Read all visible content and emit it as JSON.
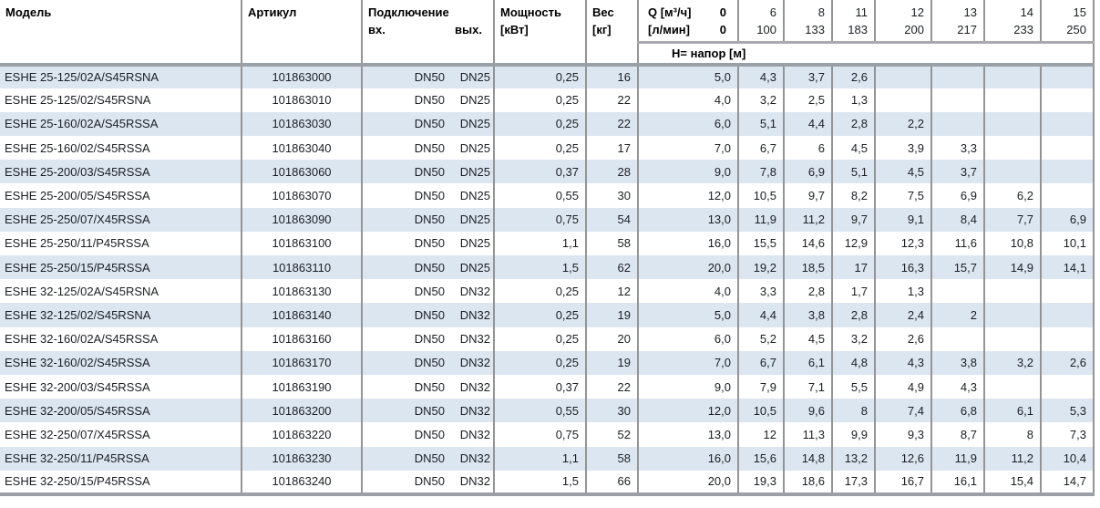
{
  "colors": {
    "stripe": "#dce6f1",
    "grid": "#949494",
    "rule_light": "#a7abb0",
    "rule_dark": "#9aa0a6"
  },
  "table": {
    "headers": {
      "model": "Модель",
      "article": "Артикул",
      "connection": "Подключение",
      "inlet": "вх.",
      "outlet": "вых.",
      "power_line1": "Мощность",
      "power_line2": "[кВт]",
      "weight_line1": "Вес",
      "weight_line2": "[кг]",
      "q_row1_label": "Q [м³/ч]",
      "q_row1_value": "0",
      "q_row2_label": "[л/мин]",
      "q_row2_value": "0",
      "head_label": "H= напор [м]",
      "flow_m3h": [
        "6",
        "8",
        "11",
        "12",
        "13",
        "14",
        "15"
      ],
      "flow_lmin": [
        "100",
        "133",
        "183",
        "200",
        "217",
        "233",
        "250"
      ]
    },
    "rows": [
      {
        "model": "ESHE 25-125/02A/S45RSNA",
        "article": "101863000",
        "inlet": "DN50",
        "outlet": "DN25",
        "power": "0,25",
        "weight": "16",
        "head": [
          "5,0",
          "4,3",
          "3,7",
          "2,6",
          "",
          "",
          "",
          ""
        ]
      },
      {
        "model": "ESHE 25-125/02/S45RSNA",
        "article": "101863010",
        "inlet": "DN50",
        "outlet": "DN25",
        "power": "0,25",
        "weight": "22",
        "head": [
          "4,0",
          "3,2",
          "2,5",
          "1,3",
          "",
          "",
          "",
          ""
        ]
      },
      {
        "model": "ESHE 25-160/02A/S45RSSA",
        "article": "101863030",
        "inlet": "DN50",
        "outlet": "DN25",
        "power": "0,25",
        "weight": "22",
        "head": [
          "6,0",
          "5,1",
          "4,4",
          "2,8",
          "2,2",
          "",
          "",
          ""
        ]
      },
      {
        "model": "ESHE 25-160/02/S45RSSA",
        "article": "101863040",
        "inlet": "DN50",
        "outlet": "DN25",
        "power": "0,25",
        "weight": "17",
        "head": [
          "7,0",
          "6,7",
          "6",
          "4,5",
          "3,9",
          "3,3",
          "",
          ""
        ]
      },
      {
        "model": "ESHE 25-200/03/S45RSSA",
        "article": "101863060",
        "inlet": "DN50",
        "outlet": "DN25",
        "power": "0,37",
        "weight": "28",
        "head": [
          "9,0",
          "7,8",
          "6,9",
          "5,1",
          "4,5",
          "3,7",
          "",
          ""
        ]
      },
      {
        "model": "ESHE 25-200/05/S45RSSA",
        "article": "101863070",
        "inlet": "DN50",
        "outlet": "DN25",
        "power": "0,55",
        "weight": "30",
        "head": [
          "12,0",
          "10,5",
          "9,7",
          "8,2",
          "7,5",
          "6,9",
          "6,2",
          ""
        ]
      },
      {
        "model": "ESHE 25-250/07/X45RSSA",
        "article": "101863090",
        "inlet": "DN50",
        "outlet": "DN25",
        "power": "0,75",
        "weight": "54",
        "head": [
          "13,0",
          "11,9",
          "11,2",
          "9,7",
          "9,1",
          "8,4",
          "7,7",
          "6,9"
        ]
      },
      {
        "model": "ESHE 25-250/11/P45RSSA",
        "article": "101863100",
        "inlet": "DN50",
        "outlet": "DN25",
        "power": "1,1",
        "weight": "58",
        "head": [
          "16,0",
          "15,5",
          "14,6",
          "12,9",
          "12,3",
          "11,6",
          "10,8",
          "10,1"
        ]
      },
      {
        "model": "ESHE 25-250/15/P45RSSA",
        "article": "101863110",
        "inlet": "DN50",
        "outlet": "DN25",
        "power": "1,5",
        "weight": "62",
        "head": [
          "20,0",
          "19,2",
          "18,5",
          "17",
          "16,3",
          "15,7",
          "14,9",
          "14,1"
        ]
      },
      {
        "model": "ESHE 32-125/02A/S45RSNA",
        "article": "101863130",
        "inlet": "DN50",
        "outlet": "DN32",
        "power": "0,25",
        "weight": "12",
        "head": [
          "4,0",
          "3,3",
          "2,8",
          "1,7",
          "1,3",
          "",
          "",
          ""
        ]
      },
      {
        "model": "ESHE 32-125/02/S45RSNA",
        "article": "101863140",
        "inlet": "DN50",
        "outlet": "DN32",
        "power": "0,25",
        "weight": "19",
        "head": [
          "5,0",
          "4,4",
          "3,8",
          "2,8",
          "2,4",
          "2",
          "",
          ""
        ]
      },
      {
        "model": "ESHE 32-160/02A/S45RSSA",
        "article": "101863160",
        "inlet": "DN50",
        "outlet": "DN32",
        "power": "0,25",
        "weight": "20",
        "head": [
          "6,0",
          "5,2",
          "4,5",
          "3,2",
          "2,6",
          "",
          "",
          ""
        ]
      },
      {
        "model": "ESHE 32-160/02/S45RSSA",
        "article": "101863170",
        "inlet": "DN50",
        "outlet": "DN32",
        "power": "0,25",
        "weight": "19",
        "head": [
          "7,0",
          "6,7",
          "6,1",
          "4,8",
          "4,3",
          "3,8",
          "3,2",
          "2,6"
        ]
      },
      {
        "model": "ESHE 32-200/03/S45RSSA",
        "article": "101863190",
        "inlet": "DN50",
        "outlet": "DN32",
        "power": "0,37",
        "weight": "22",
        "head": [
          "9,0",
          "7,9",
          "7,1",
          "5,5",
          "4,9",
          "4,3",
          "",
          ""
        ]
      },
      {
        "model": "ESHE 32-200/05/S45RSSA",
        "article": "101863200",
        "inlet": "DN50",
        "outlet": "DN32",
        "power": "0,55",
        "weight": "30",
        "head": [
          "12,0",
          "10,5",
          "9,6",
          "8",
          "7,4",
          "6,8",
          "6,1",
          "5,3"
        ]
      },
      {
        "model": "ESHE 32-250/07/X45RSSA",
        "article": "101863220",
        "inlet": "DN50",
        "outlet": "DN32",
        "power": "0,75",
        "weight": "52",
        "head": [
          "13,0",
          "12",
          "11,3",
          "9,9",
          "9,3",
          "8,7",
          "8",
          "7,3"
        ]
      },
      {
        "model": "ESHE 32-250/11/P45RSSA",
        "article": "101863230",
        "inlet": "DN50",
        "outlet": "DN32",
        "power": "1,1",
        "weight": "58",
        "head": [
          "16,0",
          "15,6",
          "14,8",
          "13,2",
          "12,6",
          "11,9",
          "11,2",
          "10,4"
        ]
      },
      {
        "model": "ESHE 32-250/15/P45RSSA",
        "article": "101863240",
        "inlet": "DN50",
        "outlet": "DN32",
        "power": "1,5",
        "weight": "66",
        "head": [
          "20,0",
          "19,3",
          "18,6",
          "17,3",
          "16,7",
          "16,1",
          "15,4",
          "14,7"
        ]
      }
    ]
  }
}
